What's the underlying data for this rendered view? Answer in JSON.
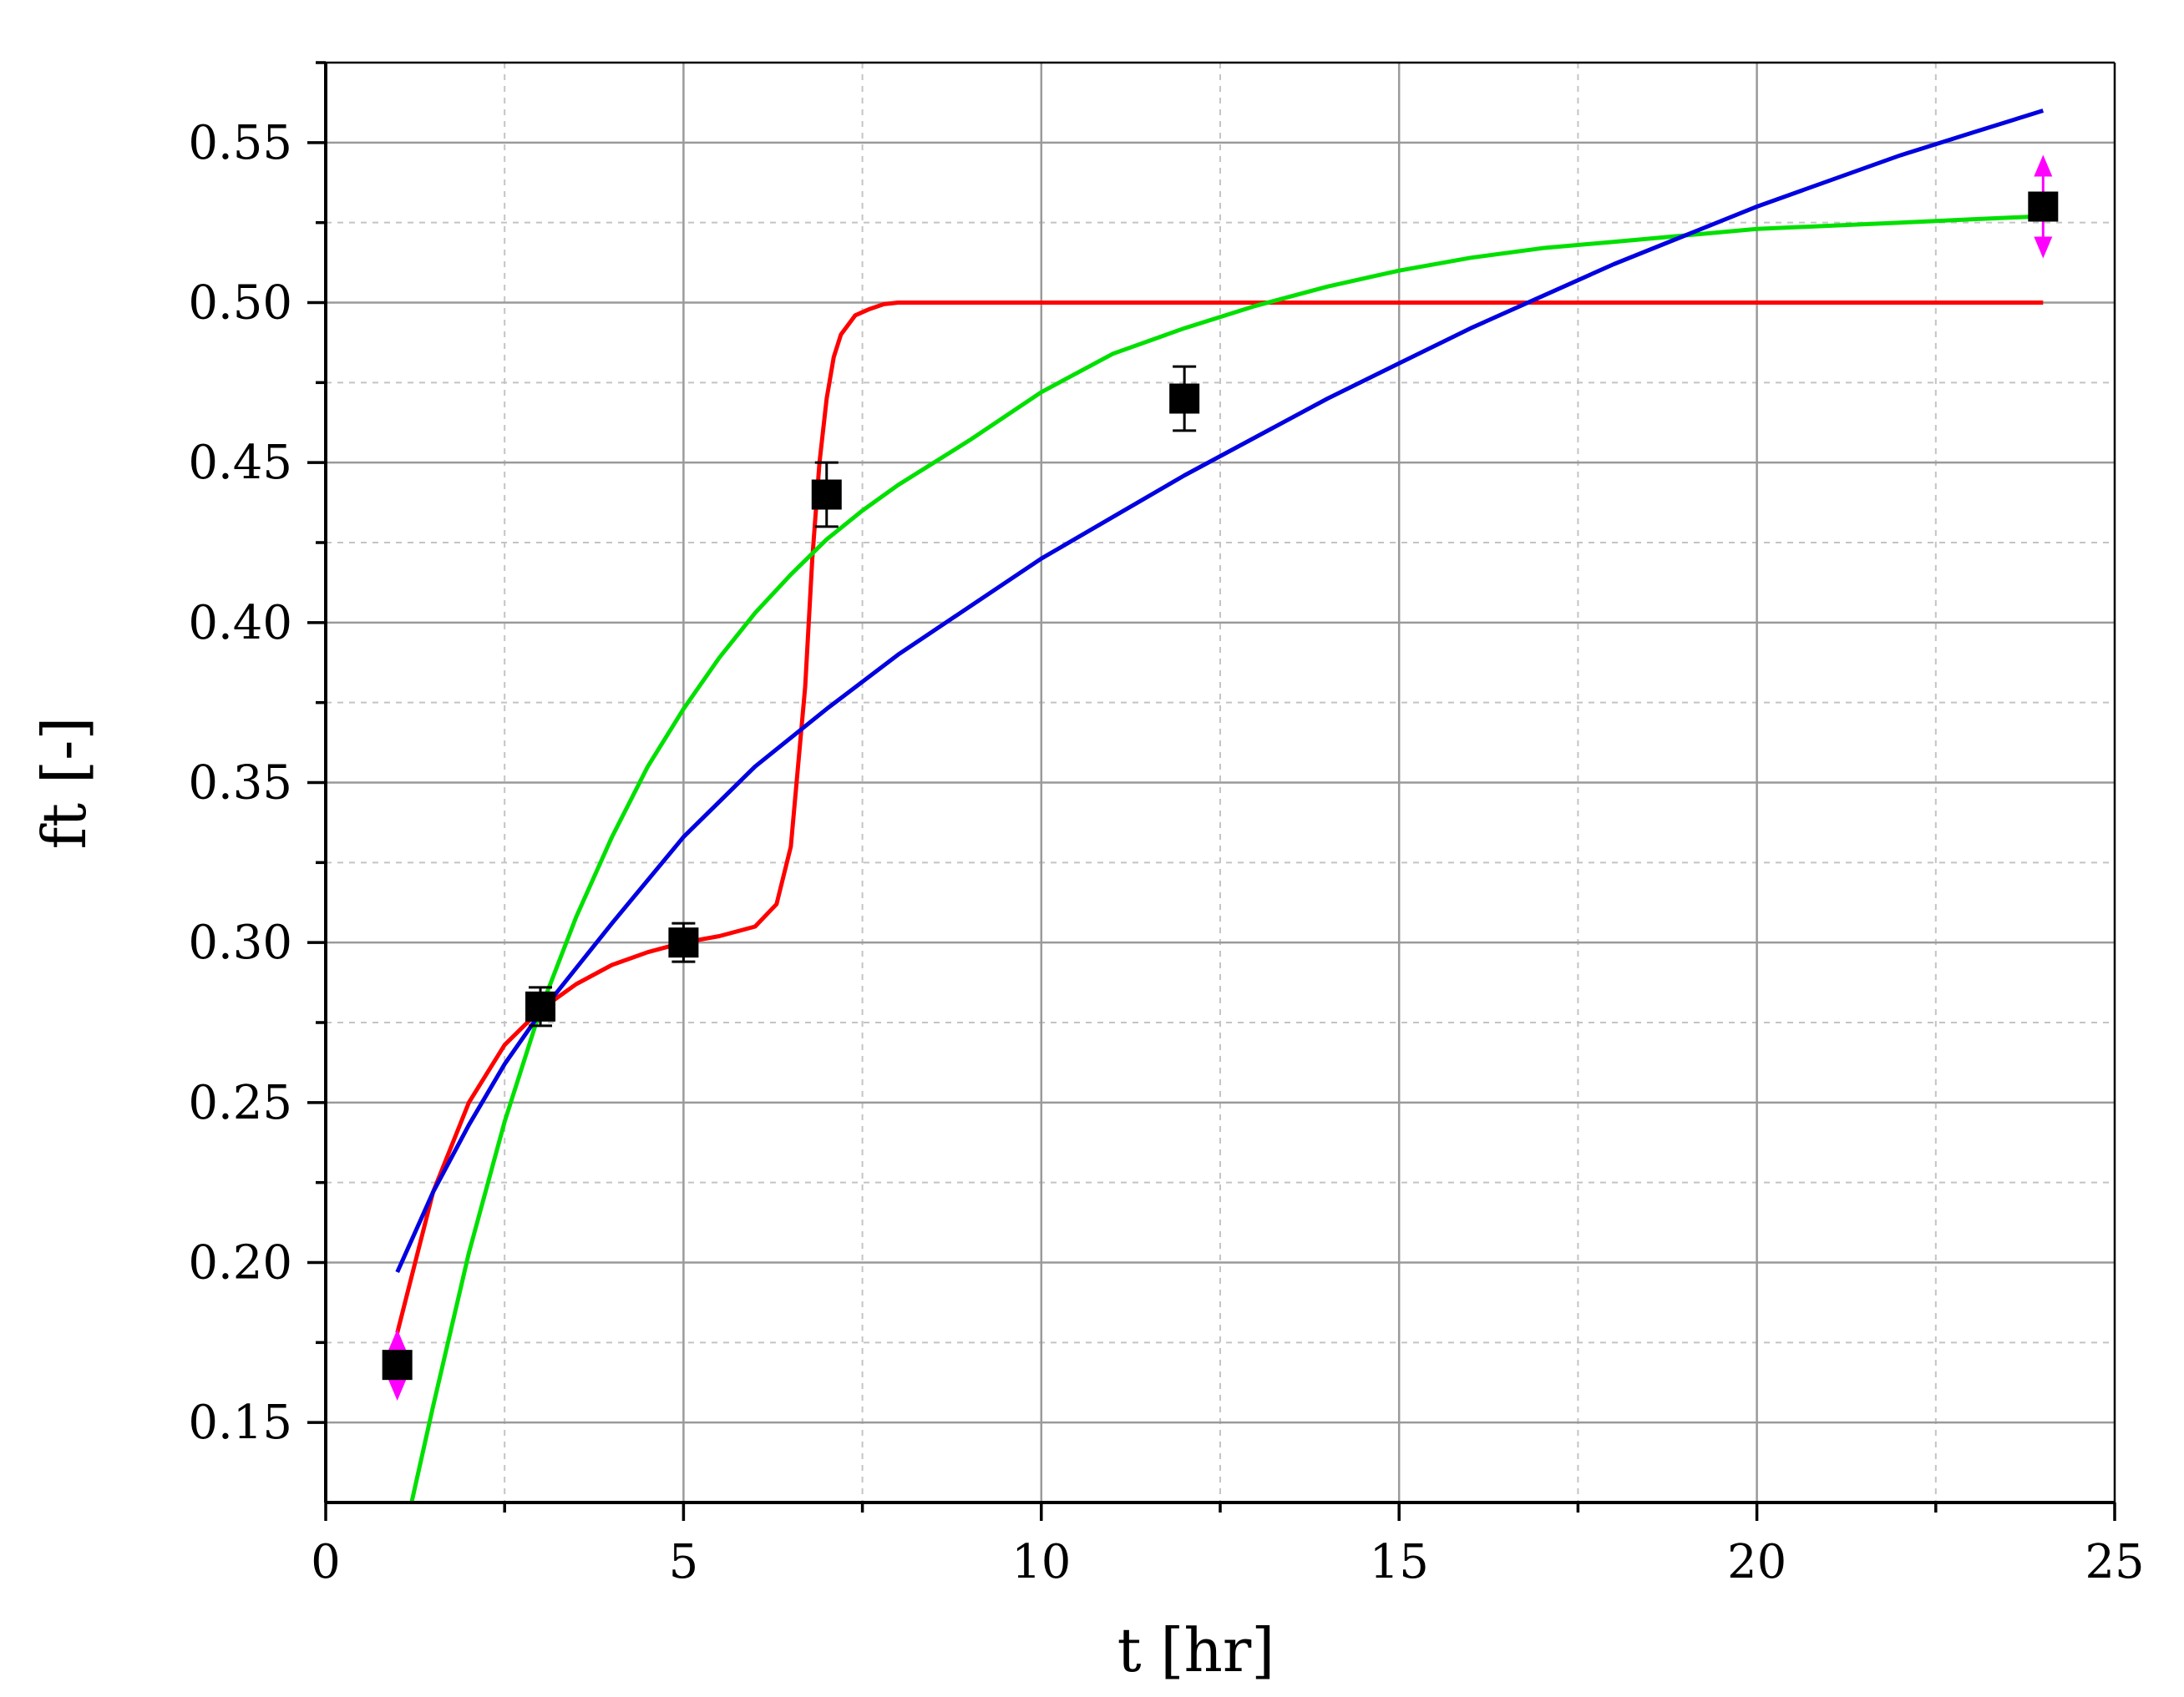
{
  "chart_data": {
    "type": "scatter",
    "title": "",
    "xlabel": "t [hr]",
    "ylabel": "ft [-]",
    "xlim": [
      0,
      25
    ],
    "ylim": [
      0.125,
      0.575
    ],
    "x_ticks": [
      0,
      5,
      10,
      15,
      20,
      25
    ],
    "x_tick_labels": [
      "0",
      "5",
      "10",
      "15",
      "20",
      "25"
    ],
    "y_ticks": [
      0.15,
      0.2,
      0.25,
      0.3,
      0.35,
      0.4,
      0.45,
      0.5,
      0.55
    ],
    "y_tick_labels": [
      "0.15",
      "0.20",
      "0.25",
      "0.30",
      "0.35",
      "0.40",
      "0.45",
      "0.50",
      "0.55"
    ],
    "grid": true,
    "legend": "none",
    "points": {
      "marker": "square",
      "color": "#000000",
      "x": [
        1,
        3,
        5,
        7,
        12,
        24
      ],
      "y": [
        0.168,
        0.28,
        0.3,
        0.44,
        0.47,
        0.53
      ],
      "error": [
        0.007,
        0.006,
        0.006,
        0.01,
        0.01,
        0.012
      ],
      "error_colors": [
        "#ff00ff",
        "#000000",
        "#000000",
        "#000000",
        "#000000",
        "#ff00ff"
      ]
    },
    "series": [
      {
        "color": "#ff0000",
        "x": [
          1,
          1.5,
          2,
          2.5,
          3,
          3.5,
          4,
          4.5,
          5,
          5.5,
          6,
          6.3,
          6.5,
          6.7,
          6.8,
          6.9,
          7.0,
          7.1,
          7.2,
          7.4,
          7.6,
          7.8,
          8,
          8.5,
          9,
          12,
          16,
          20,
          24
        ],
        "y": [
          0.178,
          0.222,
          0.25,
          0.268,
          0.279,
          0.287,
          0.293,
          0.297,
          0.3,
          0.302,
          0.305,
          0.312,
          0.33,
          0.38,
          0.42,
          0.45,
          0.47,
          0.483,
          0.49,
          0.496,
          0.498,
          0.4995,
          0.5,
          0.5,
          0.5,
          0.5,
          0.5,
          0.5,
          0.5
        ]
      },
      {
        "color": "#00e000",
        "x": [
          1.2,
          1.5,
          2,
          2.5,
          3,
          3.5,
          4,
          4.5,
          5,
          5.5,
          6,
          6.5,
          7,
          7.5,
          8,
          9,
          10,
          11,
          12,
          13,
          14,
          15,
          16,
          17,
          18,
          19,
          20,
          21,
          22,
          23,
          24
        ],
        "y": [
          0.125,
          0.155,
          0.203,
          0.244,
          0.279,
          0.308,
          0.333,
          0.355,
          0.373,
          0.389,
          0.403,
          0.415,
          0.426,
          0.435,
          0.443,
          0.457,
          0.472,
          0.484,
          0.492,
          0.499,
          0.505,
          0.51,
          0.514,
          0.517,
          0.519,
          0.521,
          0.523,
          0.524,
          0.525,
          0.526,
          0.527
        ]
      },
      {
        "color": "#0000e0",
        "x": [
          1,
          1.5,
          2,
          2.5,
          3,
          4,
          5,
          6,
          7,
          8,
          9,
          10,
          11,
          12,
          13,
          14,
          15,
          16,
          17,
          18,
          19,
          20,
          21,
          22,
          23,
          24
        ],
        "y": [
          0.197,
          0.222,
          0.243,
          0.262,
          0.278,
          0.306,
          0.333,
          0.355,
          0.373,
          0.39,
          0.405,
          0.42,
          0.433,
          0.446,
          0.458,
          0.47,
          0.481,
          0.492,
          0.502,
          0.512,
          0.521,
          0.53,
          0.538,
          0.546,
          0.553,
          0.56
        ]
      }
    ]
  }
}
